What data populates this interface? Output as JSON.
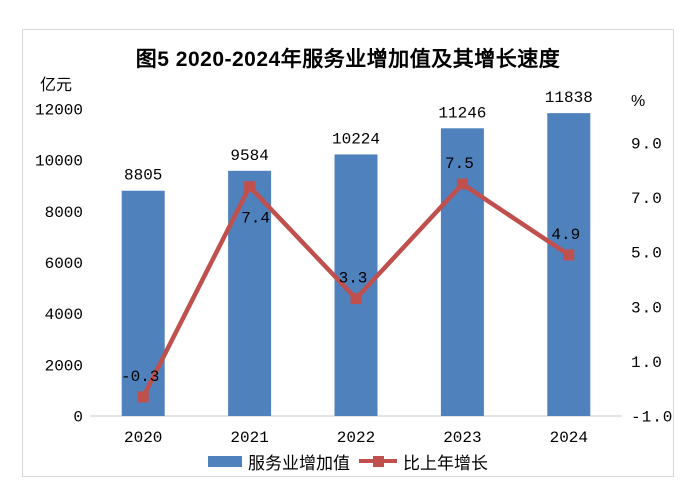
{
  "title": "图5 2020-2024年服务业增加值及其增长速度",
  "left_axis": {
    "unit": "亿元",
    "ticks": [
      "0",
      "2000",
      "4000",
      "6000",
      "8000",
      "10000",
      "12000"
    ]
  },
  "right_axis": {
    "unit": "%",
    "ticks": [
      "-1.0",
      "1.0",
      "3.0",
      "5.0",
      "7.0",
      "9.0"
    ]
  },
  "legend": {
    "items": [
      {
        "label": "服务业增加值",
        "type": "bar",
        "color": "#4F81BD"
      },
      {
        "label": "比上年增长",
        "type": "line",
        "color": "#C0504D"
      }
    ]
  },
  "colors": {
    "bar": "#4F81BD",
    "line": "#C0504D",
    "axis_line": "#c8c8c8",
    "frame_border": "#d9d9d9",
    "text": "#000000"
  },
  "chart_data": {
    "type": "bar+line",
    "title": "图5 2020-2024年服务业增加值及其增长速度",
    "categories": [
      "2020",
      "2021",
      "2022",
      "2023",
      "2024"
    ],
    "series": [
      {
        "name": "服务业增加值",
        "type": "bar",
        "axis": "left",
        "unit": "亿元",
        "color": "#4F81BD",
        "values": [
          8805,
          9584,
          10224,
          11246,
          11838
        ],
        "labels": [
          "8805",
          "9584",
          "10224",
          "11246",
          "11838"
        ]
      },
      {
        "name": "比上年增长",
        "type": "line",
        "axis": "right",
        "unit": "%",
        "color": "#C0504D",
        "marker": "square",
        "values": [
          -0.3,
          7.4,
          3.3,
          7.5,
          4.9
        ],
        "labels": [
          "-0.3",
          "7.4",
          "3.3",
          "7.5",
          "4.9"
        ],
        "label_positions": [
          "above",
          "below",
          "above",
          "above",
          "above"
        ]
      }
    ],
    "left_ylabel": "亿元",
    "right_ylabel": "%",
    "left_ylim": [
      0,
      12000
    ],
    "right_tick_min": -1.0,
    "right_tick_max": 9.0,
    "right_tick_step": 2.0,
    "grid": false,
    "legend_position": "bottom"
  }
}
